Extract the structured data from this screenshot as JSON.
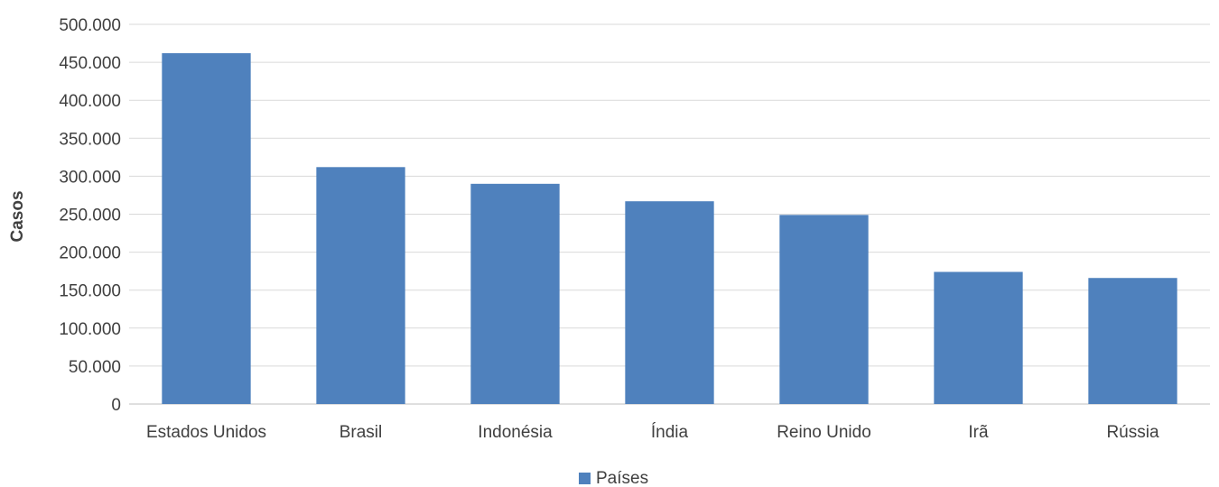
{
  "chart_data": {
    "type": "bar",
    "title": "",
    "xlabel": "",
    "ylabel": "Casos",
    "categories": [
      "Estados Unidos",
      "Brasil",
      "Indonésia",
      "Índia",
      "Reino Unido",
      "Irã",
      "Rússia"
    ],
    "series": [
      {
        "name": "Países",
        "color": "#4f81bd",
        "values": [
          462000,
          312000,
          290000,
          267000,
          249000,
          174000,
          166000
        ]
      }
    ],
    "ylim": [
      0,
      500000
    ],
    "yticks": [
      0,
      50000,
      100000,
      150000,
      200000,
      250000,
      300000,
      350000,
      400000,
      450000,
      500000
    ],
    "ytick_labels": [
      "0",
      "50.000",
      "100.000",
      "150.000",
      "200.000",
      "250.000",
      "300.000",
      "350.000",
      "400.000",
      "450.000",
      "500.000"
    ],
    "grid": true,
    "legend_position": "bottom"
  }
}
